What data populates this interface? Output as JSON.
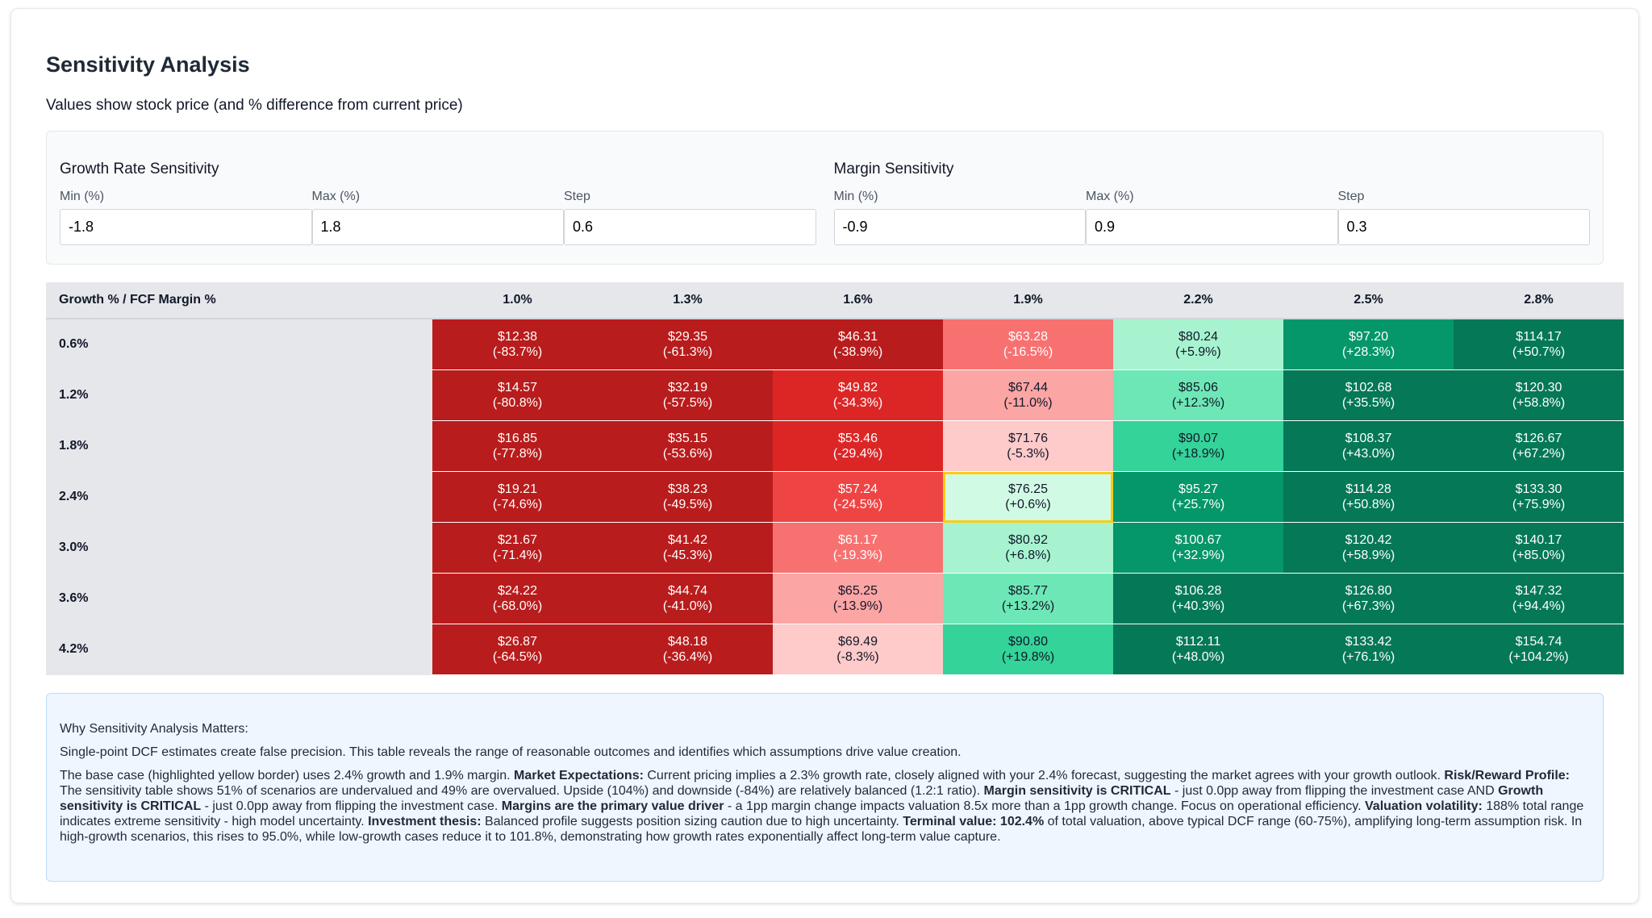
{
  "header": {
    "title": "Sensitivity Analysis",
    "subtitle": "Values show stock price (and % difference from current price)"
  },
  "controls": [
    {
      "title": "Growth Rate Sensitivity",
      "fields": [
        {
          "label": "Min (%)",
          "value": "-1.8"
        },
        {
          "label": "Max (%)",
          "value": "1.8"
        },
        {
          "label": "Step",
          "value": "0.6"
        }
      ]
    },
    {
      "title": "Margin Sensitivity",
      "fields": [
        {
          "label": "Min (%)",
          "value": "-0.9"
        },
        {
          "label": "Max (%)",
          "value": "0.9"
        },
        {
          "label": "Step",
          "value": "0.3"
        }
      ]
    }
  ],
  "table": {
    "corner": "Growth % / FCF Margin %",
    "columns": [
      "1.0%",
      "1.3%",
      "1.6%",
      "1.9%",
      "2.2%",
      "2.5%",
      "2.8%"
    ],
    "rows": [
      {
        "label": "0.6%",
        "cells": [
          [
            "$12.38",
            "(-83.7%)"
          ],
          [
            "$29.35",
            "(-61.3%)"
          ],
          [
            "$46.31",
            "(-38.9%)"
          ],
          [
            "$63.28",
            "(-16.5%)"
          ],
          [
            "$80.24",
            "(+5.9%)"
          ],
          [
            "$97.20",
            "(+28.3%)"
          ],
          [
            "$114.17",
            "(+50.7%)"
          ]
        ]
      },
      {
        "label": "1.2%",
        "cells": [
          [
            "$14.57",
            "(-80.8%)"
          ],
          [
            "$32.19",
            "(-57.5%)"
          ],
          [
            "$49.82",
            "(-34.3%)"
          ],
          [
            "$67.44",
            "(-11.0%)"
          ],
          [
            "$85.06",
            "(+12.3%)"
          ],
          [
            "$102.68",
            "(+35.5%)"
          ],
          [
            "$120.30",
            "(+58.8%)"
          ]
        ]
      },
      {
        "label": "1.8%",
        "cells": [
          [
            "$16.85",
            "(-77.8%)"
          ],
          [
            "$35.15",
            "(-53.6%)"
          ],
          [
            "$53.46",
            "(-29.4%)"
          ],
          [
            "$71.76",
            "(-5.3%)"
          ],
          [
            "$90.07",
            "(+18.9%)"
          ],
          [
            "$108.37",
            "(+43.0%)"
          ],
          [
            "$126.67",
            "(+67.2%)"
          ]
        ]
      },
      {
        "label": "2.4%",
        "cells": [
          [
            "$19.21",
            "(-74.6%)"
          ],
          [
            "$38.23",
            "(-49.5%)"
          ],
          [
            "$57.24",
            "(-24.5%)"
          ],
          [
            "$76.25",
            "(+0.6%)"
          ],
          [
            "$95.27",
            "(+25.7%)"
          ],
          [
            "$114.28",
            "(+50.8%)"
          ],
          [
            "$133.30",
            "(+75.9%)"
          ]
        ]
      },
      {
        "label": "3.0%",
        "cells": [
          [
            "$21.67",
            "(-71.4%)"
          ],
          [
            "$41.42",
            "(-45.3%)"
          ],
          [
            "$61.17",
            "(-19.3%)"
          ],
          [
            "$80.92",
            "(+6.8%)"
          ],
          [
            "$100.67",
            "(+32.9%)"
          ],
          [
            "$120.42",
            "(+58.9%)"
          ],
          [
            "$140.17",
            "(+85.0%)"
          ]
        ]
      },
      {
        "label": "3.6%",
        "cells": [
          [
            "$24.22",
            "(-68.0%)"
          ],
          [
            "$44.74",
            "(-41.0%)"
          ],
          [
            "$65.25",
            "(-13.9%)"
          ],
          [
            "$85.77",
            "(+13.2%)"
          ],
          [
            "$106.28",
            "(+40.3%)"
          ],
          [
            "$126.80",
            "(+67.3%)"
          ],
          [
            "$147.32",
            "(+94.4%)"
          ]
        ]
      },
      {
        "label": "4.2%",
        "cells": [
          [
            "$26.87",
            "(-64.5%)"
          ],
          [
            "$48.18",
            "(-36.4%)"
          ],
          [
            "$69.49",
            "(-8.3%)"
          ],
          [
            "$90.80",
            "(+19.8%)"
          ],
          [
            "$112.11",
            "(+48.0%)"
          ],
          [
            "$133.42",
            "(+76.1%)"
          ],
          [
            "$154.74",
            "(+104.2%)"
          ]
        ]
      }
    ]
  },
  "info": {
    "heading": "Why Sensitivity Analysis Matters:",
    "intro": "Single-point DCF estimates create false precision. This table reveals the range of reasonable outcomes and identifies which assumptions drive value creation.",
    "details": [
      {
        "text": "The base case (highlighted yellow border) uses 2.4% growth and 1.9% margin. ",
        "bold": false
      },
      {
        "text": "Market Expectations:",
        "bold": true
      },
      {
        "text": " Current pricing implies a 2.3% growth rate, closely aligned with your 2.4% forecast, suggesting the market agrees with your growth outlook. ",
        "bold": false
      },
      {
        "text": "Risk/Reward Profile:",
        "bold": true
      },
      {
        "text": " The sensitivity table shows 51% of scenarios are undervalued and 49% are overvalued. Upside (104%) and downside (-84%) are relatively balanced (1.2:1 ratio). ",
        "bold": false
      },
      {
        "text": "Margin sensitivity is CRITICAL",
        "bold": true
      },
      {
        "text": " - just 0.0pp away from flipping the investment case AND ",
        "bold": false
      },
      {
        "text": "Growth sensitivity is CRITICAL",
        "bold": true
      },
      {
        "text": " - just 0.0pp away from flipping the investment case. ",
        "bold": false
      },
      {
        "text": "Margins are the primary value driver",
        "bold": true
      },
      {
        "text": " - a 1pp margin change impacts valuation 8.5x more than a 1pp growth change. Focus on operational efficiency. ",
        "bold": false
      },
      {
        "text": "Valuation volatility:",
        "bold": true
      },
      {
        "text": " 188% total range indicates extreme sensitivity - high model uncertainty. ",
        "bold": false
      },
      {
        "text": "Investment thesis:",
        "bold": true
      },
      {
        "text": " Balanced profile suggests position sizing caution due to high uncertainty. ",
        "bold": false
      },
      {
        "text": "Terminal value: 102.4%",
        "bold": true
      },
      {
        "text": " of total valuation, above typical DCF range (60-75%), amplifying long-term assumption risk. In high-growth scenarios, this rises to 95.0%, while low-growth cases reduce it to 101.8%, demonstrating how growth rates exponentially affect long-term value capture.",
        "bold": false
      }
    ]
  }
}
